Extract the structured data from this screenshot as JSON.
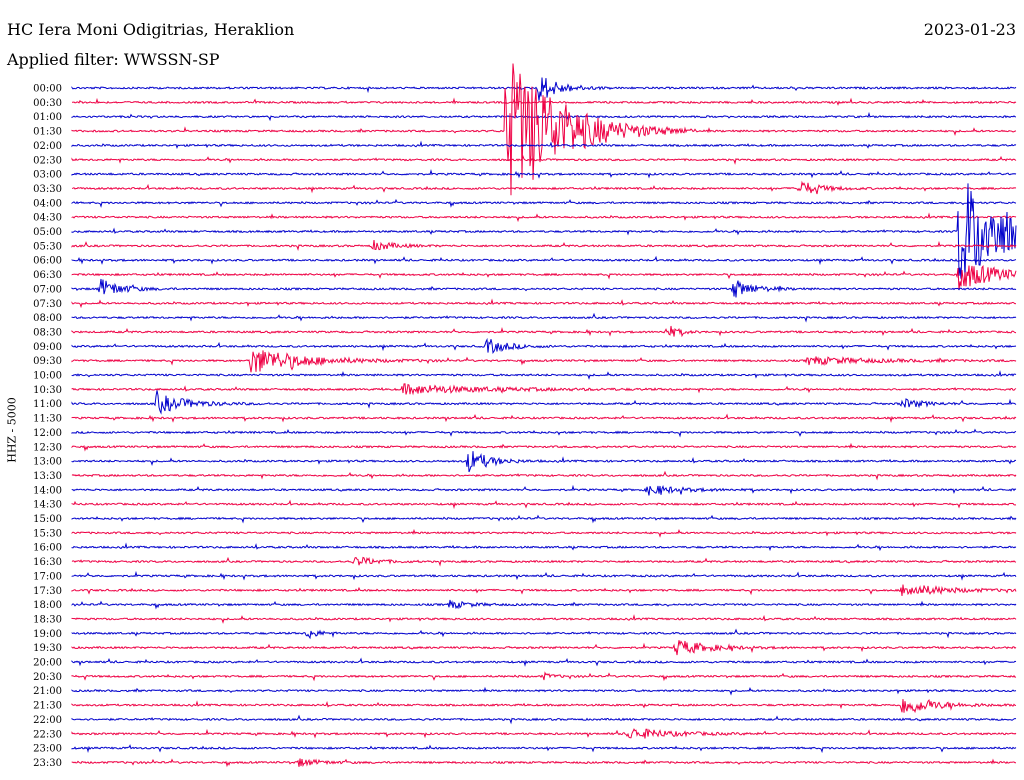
{
  "header": {
    "station": "HC Iera Moni Odigitrias, Heraklion",
    "date": "2023-01-23",
    "filter": "Applied filter: WWSSN-SP"
  },
  "chart_data": {
    "type": "line",
    "title": "",
    "ylabel": "HHZ - 5000",
    "xlabel": "",
    "grid": false,
    "colors": [
      "#0000cc",
      "#ee0044"
    ],
    "row_labels": [
      "00:00",
      "00:30",
      "01:00",
      "01:30",
      "02:00",
      "02:30",
      "03:00",
      "03:30",
      "04:00",
      "04:30",
      "05:00",
      "05:30",
      "06:00",
      "06:30",
      "07:00",
      "07:30",
      "08:00",
      "08:30",
      "09:00",
      "09:30",
      "10:00",
      "10:30",
      "11:00",
      "11:30",
      "12:00",
      "12:30",
      "13:00",
      "13:30",
      "14:00",
      "14:30",
      "15:00",
      "15:30",
      "16:00",
      "16:30",
      "17:00",
      "17:30",
      "18:00",
      "18:30",
      "19:00",
      "19:30",
      "20:00",
      "20:30",
      "21:00",
      "21:30",
      "22:00",
      "22:30",
      "23:00",
      "23:30"
    ],
    "events": [
      {
        "row": 0,
        "pos": 0.495,
        "amp": 14,
        "dur": 0.02
      },
      {
        "row": 3,
        "pos": 0.46,
        "amp": 80,
        "dur": 0.05
      },
      {
        "row": 3,
        "pos": 0.49,
        "amp": 8,
        "dur": 0.04
      },
      {
        "row": 7,
        "pos": 0.77,
        "amp": 8,
        "dur": 0.02
      },
      {
        "row": 10,
        "pos": 0.94,
        "amp": 60,
        "dur": 0.05
      },
      {
        "row": 11,
        "pos": 0.32,
        "amp": 5,
        "dur": 0.02
      },
      {
        "row": 13,
        "pos": 0.94,
        "amp": 15,
        "dur": 0.04
      },
      {
        "row": 14,
        "pos": 0.03,
        "amp": 10,
        "dur": 0.02
      },
      {
        "row": 14,
        "pos": 0.7,
        "amp": 10,
        "dur": 0.02
      },
      {
        "row": 17,
        "pos": 0.63,
        "amp": 8,
        "dur": 0.01
      },
      {
        "row": 18,
        "pos": 0.44,
        "amp": 8,
        "dur": 0.02
      },
      {
        "row": 19,
        "pos": 0.19,
        "amp": 14,
        "dur": 0.05
      },
      {
        "row": 19,
        "pos": 0.78,
        "amp": 4,
        "dur": 0.06
      },
      {
        "row": 21,
        "pos": 0.35,
        "amp": 5,
        "dur": 0.08
      },
      {
        "row": 22,
        "pos": 0.09,
        "amp": 10,
        "dur": 0.03
      },
      {
        "row": 22,
        "pos": 0.88,
        "amp": 5,
        "dur": 0.02
      },
      {
        "row": 26,
        "pos": 0.42,
        "amp": 12,
        "dur": 0.02
      },
      {
        "row": 28,
        "pos": 0.61,
        "amp": 5,
        "dur": 0.03
      },
      {
        "row": 33,
        "pos": 0.3,
        "amp": 5,
        "dur": 0.02
      },
      {
        "row": 35,
        "pos": 0.88,
        "amp": 7,
        "dur": 0.04
      },
      {
        "row": 36,
        "pos": 0.4,
        "amp": 4,
        "dur": 0.02
      },
      {
        "row": 38,
        "pos": 0.25,
        "amp": 6,
        "dur": 0.01
      },
      {
        "row": 39,
        "pos": 0.64,
        "amp": 8,
        "dur": 0.03
      },
      {
        "row": 41,
        "pos": 0.5,
        "amp": 3,
        "dur": 0.01
      },
      {
        "row": 43,
        "pos": 0.88,
        "amp": 10,
        "dur": 0.03
      },
      {
        "row": 45,
        "pos": 0.59,
        "amp": 6,
        "dur": 0.04
      },
      {
        "row": 47,
        "pos": 0.24,
        "amp": 4,
        "dur": 0.02
      }
    ]
  }
}
